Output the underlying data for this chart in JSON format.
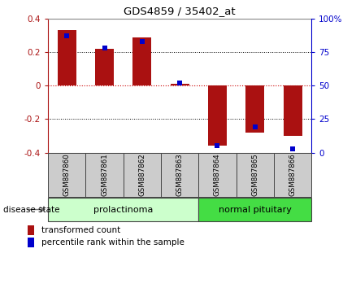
{
  "title": "GDS4859 / 35402_at",
  "samples": [
    "GSM887860",
    "GSM887861",
    "GSM887862",
    "GSM887863",
    "GSM887864",
    "GSM887865",
    "GSM887866"
  ],
  "transformed_count": [
    0.33,
    0.22,
    0.29,
    0.01,
    -0.36,
    -0.28,
    -0.3
  ],
  "percentile_rank": [
    87,
    78,
    83,
    52,
    5,
    19,
    3
  ],
  "groups": [
    {
      "label": "prolactinoma",
      "span": [
        0,
        3
      ],
      "color": "#ccffcc"
    },
    {
      "label": "normal pituitary",
      "span": [
        4,
        6
      ],
      "color": "#44dd44"
    }
  ],
  "bar_color": "#aa1111",
  "dot_color": "#0000cc",
  "ylim_left": [
    -0.4,
    0.4
  ],
  "ylim_right": [
    0,
    100
  ],
  "yticks_left": [
    -0.4,
    -0.2,
    0.0,
    0.2,
    0.4
  ],
  "yticks_right": [
    0,
    25,
    50,
    75,
    100
  ],
  "background_color": "#ffffff",
  "disease_state_label": "disease state",
  "legend_transformed": "transformed count",
  "legend_percentile": "percentile rank within the sample",
  "bar_width": 0.5,
  "sample_box_color": "#cccccc",
  "sample_box_edge": "#888888"
}
